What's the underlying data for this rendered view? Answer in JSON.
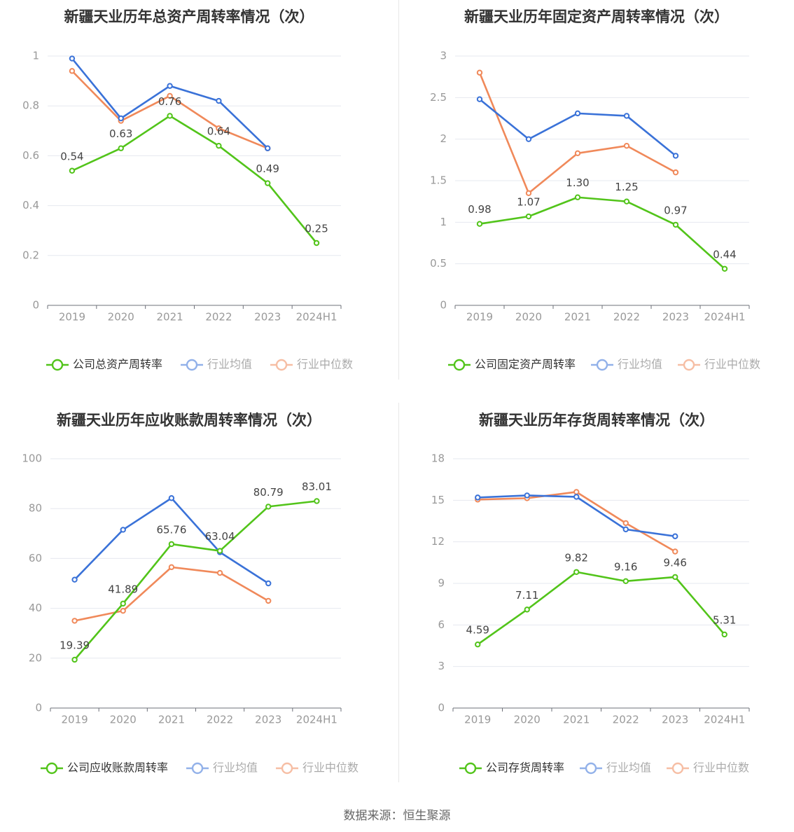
{
  "charts": [
    {
      "type": "line",
      "title": "新疆天业历年总资产周转率情况（次）",
      "categories": [
        "2019",
        "2020",
        "2021",
        "2022",
        "2023",
        "2024H1"
      ],
      "ylim": [
        0,
        1
      ],
      "yticks": [
        0,
        0.2,
        0.4,
        0.6,
        0.8,
        1
      ],
      "ytick_labels": [
        "0",
        "0.2",
        "0.4",
        "0.6",
        "0.8",
        "1"
      ],
      "series": [
        {
          "name": "公司总资产周转率",
          "color": "#52c41a",
          "values": [
            0.54,
            0.63,
            0.76,
            0.64,
            0.49,
            0.25
          ],
          "labels": [
            "0.54",
            "0.63",
            "0.76",
            "0.64",
            "0.49",
            "0.25"
          ]
        },
        {
          "name": "行业均值",
          "color": "#3a72d8",
          "values": [
            0.99,
            0.75,
            0.88,
            0.82,
            0.63
          ]
        },
        {
          "name": "行业中位数",
          "color": "#f0895a",
          "values": [
            0.94,
            0.74,
            0.84,
            0.71,
            0.63
          ]
        }
      ]
    },
    {
      "type": "line",
      "title": "新疆天业历年固定资产周转率情况（次）",
      "categories": [
        "2019",
        "2020",
        "2021",
        "2022",
        "2023",
        "2024H1"
      ],
      "ylim": [
        0,
        3
      ],
      "yticks": [
        0,
        0.5,
        1,
        1.5,
        2,
        2.5,
        3
      ],
      "ytick_labels": [
        "0",
        "0.5",
        "1",
        "1.5",
        "2",
        "2.5",
        "3"
      ],
      "series": [
        {
          "name": "公司固定资产周转率",
          "color": "#52c41a",
          "values": [
            0.98,
            1.07,
            1.3,
            1.25,
            0.97,
            0.44
          ],
          "labels": [
            "0.98",
            "1.07",
            "1.30",
            "1.25",
            "0.97",
            "0.44"
          ]
        },
        {
          "name": "行业均值",
          "color": "#3a72d8",
          "values": [
            2.48,
            2.0,
            2.31,
            2.28,
            1.8
          ]
        },
        {
          "name": "行业中位数",
          "color": "#f0895a",
          "values": [
            2.8,
            1.35,
            1.83,
            1.92,
            1.6
          ]
        }
      ]
    },
    {
      "type": "line",
      "title": "新疆天业历年应收账款周转率情况（次）",
      "categories": [
        "2019",
        "2020",
        "2021",
        "2022",
        "2023",
        "2024H1"
      ],
      "ylim": [
        0,
        100
      ],
      "yticks": [
        0,
        20,
        40,
        60,
        80,
        100
      ],
      "ytick_labels": [
        "0",
        "20",
        "40",
        "60",
        "80",
        "100"
      ],
      "series": [
        {
          "name": "公司应收账款周转率",
          "color": "#52c41a",
          "values": [
            19.39,
            41.89,
            65.76,
            63.04,
            80.79,
            83.01
          ],
          "labels": [
            "19.39",
            "41.89",
            "65.76",
            "63.04",
            "80.79",
            "83.01"
          ]
        },
        {
          "name": "行业均值",
          "color": "#3a72d8",
          "values": [
            51.5,
            71.5,
            84.2,
            62.5,
            50
          ]
        },
        {
          "name": "行业中位数",
          "color": "#f0895a",
          "values": [
            35,
            39,
            56.5,
            54.2,
            43
          ]
        }
      ]
    },
    {
      "type": "line",
      "title": "新疆天业历年存货周转率情况（次）",
      "categories": [
        "2019",
        "2020",
        "2021",
        "2022",
        "2023",
        "2024H1"
      ],
      "ylim": [
        0,
        18
      ],
      "yticks": [
        0,
        3,
        6,
        9,
        12,
        15,
        18
      ],
      "ytick_labels": [
        "0",
        "3",
        "6",
        "9",
        "12",
        "15",
        "18"
      ],
      "series": [
        {
          "name": "公司存货周转率",
          "color": "#52c41a",
          "values": [
            4.59,
            7.11,
            9.82,
            9.16,
            9.46,
            5.31
          ],
          "labels": [
            "4.59",
            "7.11",
            "9.82",
            "9.16",
            "9.46",
            "5.31"
          ]
        },
        {
          "name": "行业均值",
          "color": "#3a72d8",
          "values": [
            15.2,
            15.35,
            15.25,
            12.9,
            12.4
          ]
        },
        {
          "name": "行业中位数",
          "color": "#f0895a",
          "values": [
            15.05,
            15.15,
            15.6,
            13.35,
            11.3
          ]
        }
      ]
    }
  ],
  "footer": {
    "source": "数据来源：恒生聚源"
  }
}
